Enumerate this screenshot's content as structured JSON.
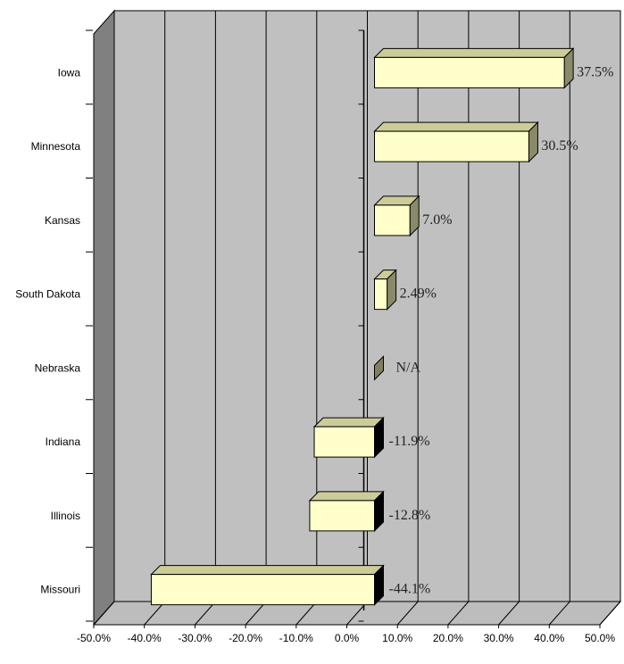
{
  "chart_data": {
    "type": "bar",
    "orientation": "horizontal",
    "three_d": true,
    "title": "",
    "xlabel": "",
    "ylabel": "",
    "categories": [
      "Iowa",
      "Minnesota",
      "Kansas",
      "South Dakota",
      "Nebraska",
      "Indiana",
      "Illinois",
      "Missouri"
    ],
    "values": [
      37.5,
      30.5,
      7.0,
      2.49,
      null,
      -11.9,
      -12.8,
      -44.1
    ],
    "data_labels": [
      "37.5%",
      "30.5%",
      "7.0%",
      "2.49%",
      "N/A",
      "-11.9%",
      "-12.8%",
      "-44.1%"
    ],
    "x_ticks": [
      "-50.0%",
      "-40.0%",
      "-30.0%",
      "-20.0%",
      "-10.0%",
      "0.0%",
      "10.0%",
      "20.0%",
      "30.0%",
      "40.0%",
      "50.0%"
    ],
    "xlim": [
      -50,
      50
    ],
    "grid": true,
    "legend": "none",
    "colors": {
      "bar_face": "#ffffcc",
      "bar_top": "#cccc99",
      "bar_side_positive": "#8a8a6a",
      "bar_side_negative": "#000000",
      "na_marker": "#808060",
      "plot_back": "#c0c0c0",
      "side_wall": "#808080",
      "floor": "#bdbdbd",
      "gridline": "#000000"
    }
  }
}
